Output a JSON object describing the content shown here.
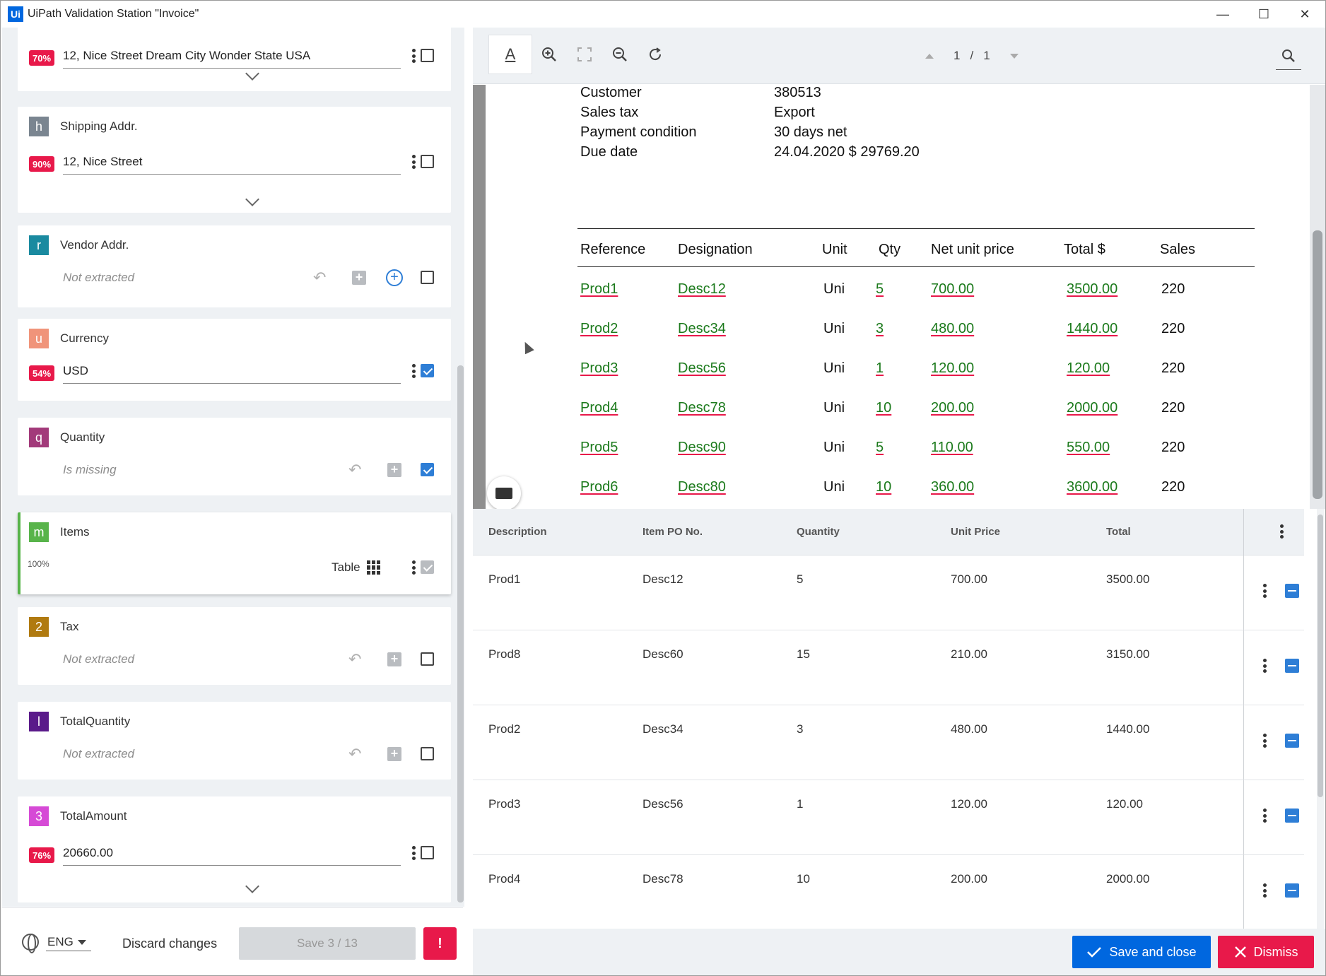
{
  "window": {
    "logo": "Ui",
    "title": "UiPath Validation Station \"Invoice\"",
    "minimize": "—",
    "maximize": "☐",
    "close": "✕"
  },
  "fields": [
    {
      "letter": "",
      "name": "",
      "confidence": "70%",
      "value": "12, Nice Street Dream City Wonder State USA",
      "checked": false
    },
    {
      "letter": "h",
      "name": "Shipping Addr.",
      "confidence": "90%",
      "value": "12, Nice Street",
      "checked": false
    },
    {
      "letter": "r",
      "name": "Vendor Addr.",
      "status": "Not extracted",
      "checked": false
    },
    {
      "letter": "u",
      "name": "Currency",
      "confidence": "54%",
      "value": "USD",
      "checked": true
    },
    {
      "letter": "q",
      "name": "Quantity",
      "status": "Is missing",
      "checked": true
    },
    {
      "letter": "m",
      "name": "Items",
      "confidence": "100%",
      "type_label": "Table"
    },
    {
      "letter": "2",
      "name": "Tax",
      "status": "Not extracted",
      "checked": false
    },
    {
      "letter": "l",
      "name": "TotalQuantity",
      "status": "Not extracted",
      "checked": false
    },
    {
      "letter": "3",
      "name": "TotalAmount",
      "confidence": "76%",
      "value": "20660.00",
      "checked": false
    }
  ],
  "field_colors": {
    "h": "#7a8590",
    "r": "#1a8aa0",
    "u": "#f0947a",
    "q": "#a23a7a",
    "m": "#58b44a",
    "2": "#b07a10",
    "l": "#5a1a8a",
    "3": "#d64ad6"
  },
  "left_footer": {
    "language": "ENG",
    "discard": "Discard changes",
    "save": "Save 3 / 13",
    "alert": "!"
  },
  "viewer": {
    "page_current": "1",
    "page_sep": "/",
    "page_total": "1",
    "doc_meta": [
      {
        "label": "Customer",
        "value": "380513"
      },
      {
        "label": "Sales tax",
        "value": "Export"
      },
      {
        "label": "Payment condition",
        "value": "30 days net"
      },
      {
        "label": "Due date",
        "value": "24.04.2020 $ 29769.20"
      }
    ],
    "doc_columns": [
      "Reference",
      "Designation",
      "Unit",
      "Qty",
      "Net unit price",
      "Total $",
      "Sales"
    ],
    "doc_rows": [
      [
        "Prod1",
        "Desc12",
        "Uni",
        "5",
        "700.00",
        "3500.00",
        "220"
      ],
      [
        "Prod2",
        "Desc34",
        "Uni",
        "3",
        "480.00",
        "1440.00",
        "220"
      ],
      [
        "Prod3",
        "Desc56",
        "Uni",
        "1",
        "120.00",
        "120.00",
        "220"
      ],
      [
        "Prod4",
        "Desc78",
        "Uni",
        "10",
        "200.00",
        "2000.00",
        "220"
      ],
      [
        "Prod5",
        "Desc90",
        "Uni",
        "5",
        "110.00",
        "550.00",
        "220"
      ],
      [
        "Prod6",
        "Desc80",
        "Uni",
        "10",
        "360.00",
        "3600.00",
        "220"
      ]
    ]
  },
  "items_table": {
    "columns": [
      "Description",
      "Item PO No.",
      "Quantity",
      "Unit Price",
      "Total"
    ],
    "rows": [
      [
        "Prod1",
        "Desc12",
        "5",
        "700.00",
        "3500.00"
      ],
      [
        "Prod8",
        "Desc60",
        "15",
        "210.00",
        "3150.00"
      ],
      [
        "Prod2",
        "Desc34",
        "3",
        "480.00",
        "1440.00"
      ],
      [
        "Prod3",
        "Desc56",
        "1",
        "120.00",
        "120.00"
      ],
      [
        "Prod4",
        "Desc78",
        "10",
        "200.00",
        "2000.00"
      ]
    ]
  },
  "right_footer": {
    "save_close": "Save and close",
    "dismiss": "Dismiss"
  },
  "colors": {
    "accent": "#0067df",
    "danger": "#e8194a",
    "check": "#2e7ed6"
  }
}
